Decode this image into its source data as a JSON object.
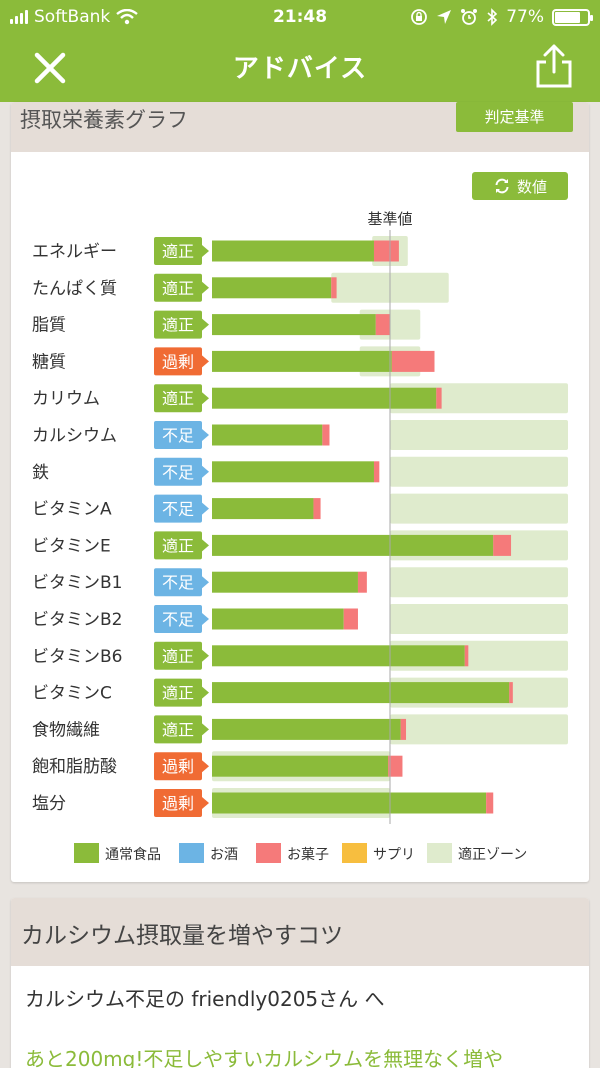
{
  "status_bar": {
    "carrier": "SoftBank",
    "time": "21:48",
    "battery": "77%",
    "battery_level": 0.77
  },
  "nav": {
    "title": "アドバイス"
  },
  "card1": {
    "title": "摂取栄養素グラフ",
    "criteria_label": "判定基準",
    "value_button_label": "数値",
    "baseline_label": "基準値"
  },
  "colors": {
    "food": "#8bbb3a",
    "alcohol": "#6cb4e4",
    "sweets": "#f57a7a",
    "supplement": "#f7be3f",
    "zone": "#dfebcd",
    "badge_ok": "#8bbb3a",
    "badge_low": "#6cb4e4",
    "badge_high": "#f06b34"
  },
  "chart_data": {
    "type": "bar",
    "baseline_label": "基準値",
    "baseline": 100,
    "legend": [
      {
        "label": "通常食品",
        "color": "#8bbb3a"
      },
      {
        "label": "お酒",
        "color": "#6cb4e4"
      },
      {
        "label": "お菓子",
        "color": "#f57a7a"
      },
      {
        "label": "サプリ",
        "color": "#f7be3f"
      },
      {
        "label": "適正ゾーン",
        "color": "#dfebcd"
      }
    ],
    "rows": [
      {
        "label": "エネルギー",
        "status": "適正",
        "status_type": "ok",
        "food": 91,
        "sweets": 14,
        "zone": [
          90,
          110
        ]
      },
      {
        "label": "たんぱく質",
        "status": "適正",
        "status_type": "ok",
        "food": 67,
        "sweets": 3,
        "zone": [
          67,
          133
        ]
      },
      {
        "label": "脂質",
        "status": "適正",
        "status_type": "ok",
        "food": 92,
        "sweets": 8,
        "zone": [
          83,
          117
        ]
      },
      {
        "label": "糖質",
        "status": "過剰",
        "status_type": "high",
        "food": 101,
        "sweets": 24,
        "zone": [
          83,
          117
        ]
      },
      {
        "label": "カリウム",
        "status": "適正",
        "status_type": "ok",
        "food": 126,
        "sweets": 3,
        "zone": [
          100,
          200
        ]
      },
      {
        "label": "カルシウム",
        "status": "不足",
        "status_type": "low",
        "food": 62,
        "sweets": 4,
        "zone": [
          100,
          200
        ]
      },
      {
        "label": "鉄",
        "status": "不足",
        "status_type": "low",
        "food": 91,
        "sweets": 3,
        "zone": [
          100,
          200
        ]
      },
      {
        "label": "ビタミンA",
        "status": "不足",
        "status_type": "low",
        "food": 57,
        "sweets": 4,
        "zone": [
          100,
          200
        ]
      },
      {
        "label": "ビタミンE",
        "status": "適正",
        "status_type": "ok",
        "food": 158,
        "sweets": 10,
        "zone": [
          100,
          200
        ]
      },
      {
        "label": "ビタミンB1",
        "status": "不足",
        "status_type": "low",
        "food": 82,
        "sweets": 5,
        "zone": [
          100,
          200
        ]
      },
      {
        "label": "ビタミンB2",
        "status": "不足",
        "status_type": "low",
        "food": 74,
        "sweets": 8,
        "zone": [
          100,
          200
        ]
      },
      {
        "label": "ビタミンB6",
        "status": "適正",
        "status_type": "ok",
        "food": 142,
        "sweets": 2,
        "zone": [
          100,
          200
        ]
      },
      {
        "label": "ビタミンC",
        "status": "適正",
        "status_type": "ok",
        "food": 167,
        "sweets": 2,
        "zone": [
          100,
          200
        ]
      },
      {
        "label": "食物繊維",
        "status": "適正",
        "status_type": "ok",
        "food": 106,
        "sweets": 3,
        "zone": [
          100,
          200
        ]
      },
      {
        "label": "飽和脂肪酸",
        "status": "過剰",
        "status_type": "high",
        "food": 99,
        "sweets": 8,
        "zone": [
          0,
          100
        ]
      },
      {
        "label": "塩分",
        "status": "過剰",
        "status_type": "high",
        "food": 154,
        "sweets": 4,
        "zone": [
          0,
          100
        ]
      }
    ]
  },
  "card2": {
    "title": "カルシウム摂取量を増やすコツ",
    "greeting": "カルシウム不足の friendly0205さん へ",
    "tip": "あと200mg!不足しやすいカルシウムを無理なく増や"
  }
}
